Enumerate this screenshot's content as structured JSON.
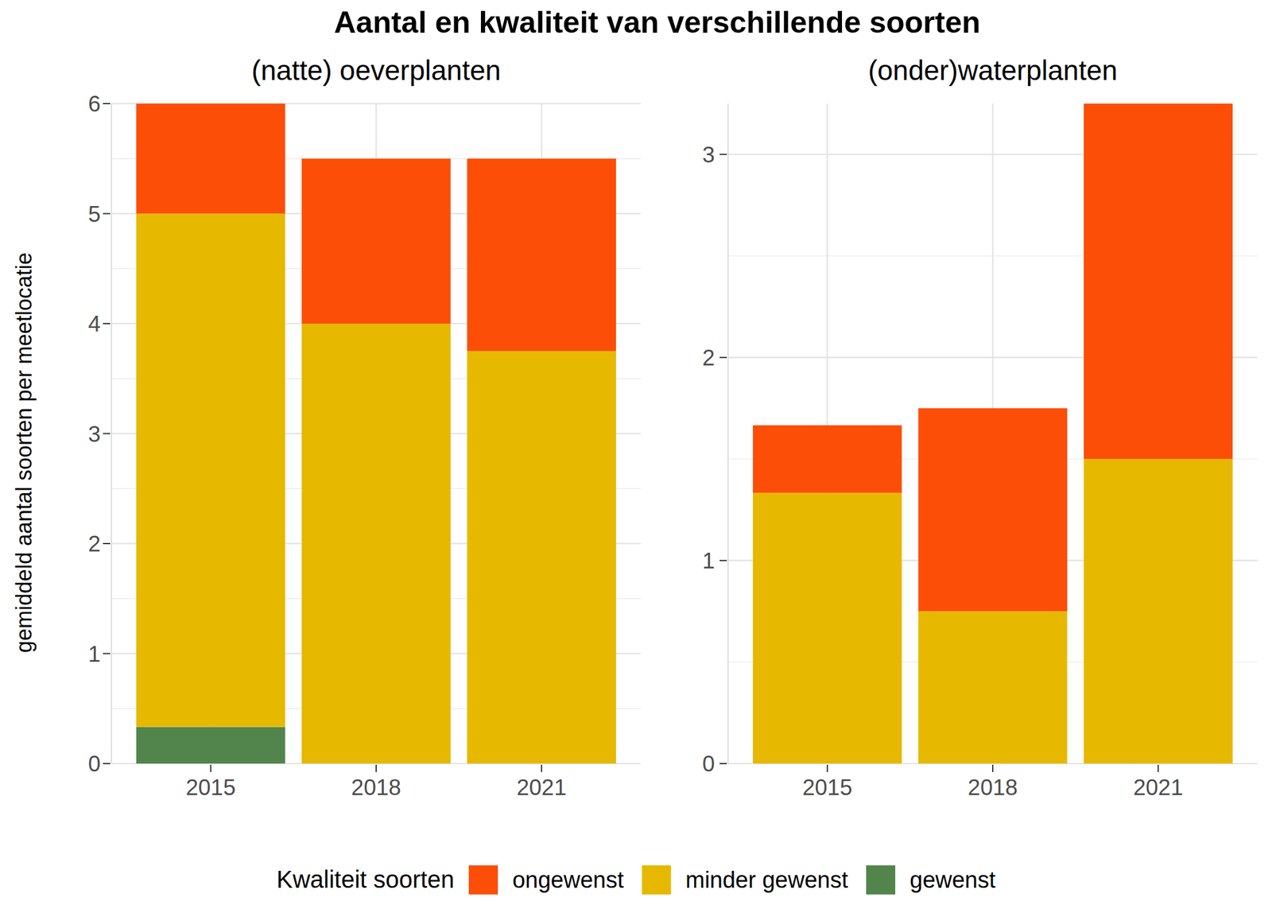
{
  "title": "Aantal en kwaliteit van verschillende soorten",
  "y_label": "gemiddeld aantal soorten per meetlocatie",
  "legend_title": "Kwaliteit soorten",
  "chart_data": [
    {
      "type": "bar",
      "title": "(natte) oeverplanten",
      "stacked": true,
      "grid": true,
      "legend": "bottom",
      "categories": [
        "2015",
        "2018",
        "2021"
      ],
      "series": [
        {
          "name": "ongewenst",
          "color": "#FC4E07",
          "values": [
            1,
            1.5,
            1.75
          ]
        },
        {
          "name": "minder gewenst",
          "color": "#E7B800",
          "values": [
            4.667,
            4,
            3.75
          ]
        },
        {
          "name": "gewenst",
          "color": "#52854C",
          "values": [
            0.333,
            0,
            0
          ]
        }
      ],
      "ylim": [
        0,
        6
      ],
      "yticks": [
        0,
        1,
        2,
        3,
        4,
        5,
        6
      ]
    },
    {
      "type": "bar",
      "title": "(onder)waterplanten",
      "stacked": true,
      "grid": true,
      "legend": "bottom",
      "categories": [
        "2015",
        "2018",
        "2021"
      ],
      "series": [
        {
          "name": "ongewenst",
          "color": "#FC4E07",
          "values": [
            0.333,
            1,
            1.75
          ]
        },
        {
          "name": "minder gewenst",
          "color": "#E7B800",
          "values": [
            1.333,
            0.75,
            1.5
          ]
        },
        {
          "name": "gewenst",
          "color": "#52854C",
          "values": [
            0,
            0,
            0
          ]
        }
      ],
      "ylim": [
        0,
        3.25
      ],
      "yticks": [
        0,
        1,
        2,
        3
      ]
    }
  ]
}
